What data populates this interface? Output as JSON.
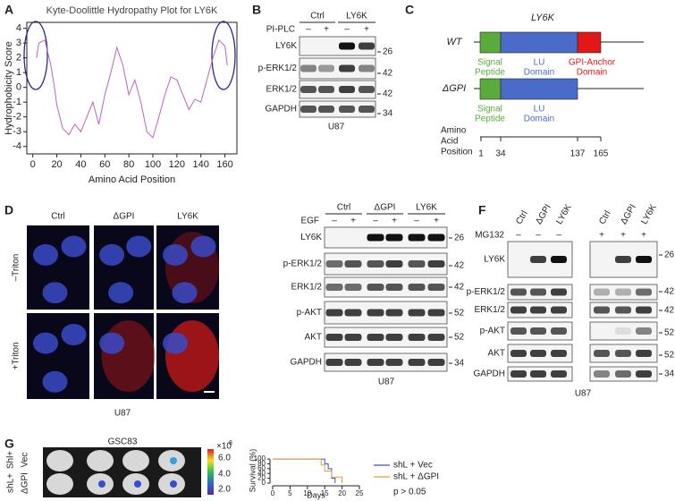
{
  "panel_labels": [
    "A",
    "B",
    "C",
    "D",
    "F",
    "G"
  ],
  "chart_data": [
    {
      "type": "line",
      "title": "Kyte-Doolittle Hydropathy Plot for LY6K",
      "xlabel": "Amino Acid Position",
      "ylabel": "Hydrophobicity Score",
      "x": [
        3,
        5,
        10,
        15,
        18,
        20,
        25,
        30,
        35,
        40,
        45,
        50,
        55,
        60,
        65,
        70,
        75,
        80,
        85,
        90,
        95,
        100,
        105,
        110,
        115,
        120,
        125,
        130,
        135,
        140,
        145,
        150,
        155,
        160,
        162
      ],
      "series": [
        {
          "color": "#c062c0",
          "values": [
            2.0,
            3.0,
            3.2,
            1.5,
            0.0,
            -1.2,
            -2.8,
            -3.2,
            -2.5,
            -3.0,
            -2.0,
            -1.0,
            -2.5,
            -0.5,
            1.0,
            2.7,
            1.5,
            -0.5,
            0.5,
            -1.0,
            -3.0,
            -3.4,
            -2.0,
            -0.5,
            0.7,
            0.5,
            -0.5,
            -1.5,
            -0.8,
            -1.0,
            0.5,
            2.0,
            3.2,
            2.8,
            1.5
          ]
        }
      ],
      "xlim": [
        -5,
        170
      ],
      "ylim": [
        -4.5,
        4.4
      ],
      "xticks": [
        0,
        20,
        40,
        60,
        80,
        100,
        120,
        140,
        160
      ],
      "yticks": [
        -4,
        -3,
        -2,
        -1,
        0,
        1,
        2,
        3,
        4
      ]
    },
    {
      "type": "line",
      "drawstyle": "steps-post",
      "xlabel": "Days",
      "ylabel": "Survival (%)",
      "series": [
        {
          "name": "shL + Vec",
          "color": "#4a4ac8",
          "x": [
            0,
            15,
            16,
            17,
            18
          ],
          "values": [
            100,
            80,
            60,
            20,
            0
          ]
        },
        {
          "name": "shL + ΔGPI",
          "color": "#e0a030",
          "x": [
            0,
            14,
            15,
            17,
            20
          ],
          "values": [
            100,
            75,
            50,
            25,
            0
          ]
        }
      ],
      "annotation": "p > 0.05",
      "xlim": [
        0,
        25
      ],
      "ylim": [
        0,
        104
      ],
      "xticks": [
        0,
        5,
        10,
        15,
        20,
        25
      ],
      "yticks": [
        0,
        20,
        40,
        60,
        80,
        100
      ]
    }
  ],
  "panel_b": {
    "groups": [
      "Ctrl",
      "LY6K"
    ],
    "treatment": "PI-PLC",
    "signs": [
      "–",
      "+",
      "–",
      "+"
    ],
    "rows": [
      "LY6K",
      "p-ERK1/2",
      "ERK1/2",
      "GAPDH"
    ],
    "mw": [
      26,
      42,
      42,
      34
    ],
    "cell_line": "U87"
  },
  "panel_c": {
    "protein": "LY6K",
    "constructs": [
      "WT",
      "ΔGPI"
    ],
    "wt_domains": [
      [
        "Signal",
        "Peptide"
      ],
      [
        "LU",
        "Domain"
      ],
      [
        "GPI-Anchor",
        "Domain"
      ]
    ],
    "dgpi_domains": [
      [
        "Signal",
        "Peptide"
      ],
      [
        "LU",
        "Domain"
      ]
    ],
    "axis_title": [
      "Amino",
      "Acid",
      "Position"
    ],
    "positions": [
      1,
      34,
      137,
      165
    ]
  },
  "panel_d": {
    "columns": [
      "Ctrl",
      "ΔGPI",
      "LY6K"
    ],
    "rows": [
      "–Triton",
      "+Triton"
    ],
    "cell_line": "U87"
  },
  "panel_e": {
    "groups": [
      "Ctrl",
      "ΔGPI",
      "LY6K"
    ],
    "treatment": "EGF",
    "signs": [
      "–",
      "+",
      "–",
      "+",
      "–",
      "+"
    ],
    "rows": [
      "LY6K",
      "p-ERK1/2",
      "ERK1/2",
      "p-AKT",
      "AKT",
      "GAPDH"
    ],
    "mw": [
      26,
      42,
      42,
      52,
      52,
      34
    ],
    "cell_line": "U87"
  },
  "panel_f": {
    "lanes": [
      "Ctrl",
      "ΔGPI",
      "LY6K",
      "Ctrl",
      "ΔGPI",
      "LY6K"
    ],
    "treatment": "MG132",
    "signs": [
      "–",
      "–",
      "–",
      "+",
      "+",
      "+"
    ],
    "rows": [
      "LY6K",
      "p-ERK1/2",
      "ERK1/2",
      "p-AKT",
      "AKT",
      "GAPDH"
    ],
    "mw": [
      26,
      42,
      42,
      52,
      52,
      34
    ],
    "cell_line": "U87"
  },
  "panel_g": {
    "cell_line": "GSC83",
    "scale_base": "×10",
    "scale_exp": "8",
    "scale_ticks": [
      "6.0",
      "4.0",
      "2.0"
    ],
    "row_labels": [
      [
        "Shl+",
        "Vec"
      ],
      [
        "shL+",
        "ΔGPI"
      ]
    ]
  }
}
